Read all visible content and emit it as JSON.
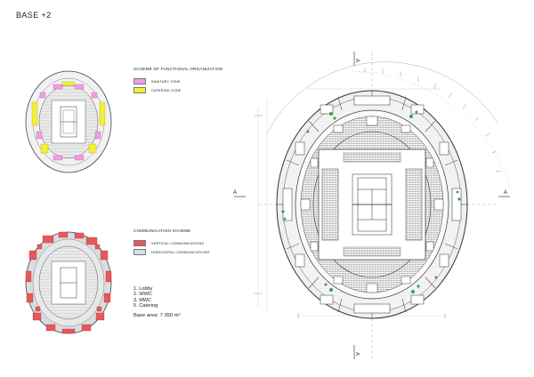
{
  "title": "BASE +2",
  "functional": {
    "heading": "SCHEME OF FUNCTIONAL ORGANIZATION",
    "legend": [
      {
        "label": "SANITARY ZONE",
        "color": "#f39de6"
      },
      {
        "label": "CATERING ZONE",
        "color": "#f3f03a"
      }
    ]
  },
  "communication": {
    "heading": "COMMUNICATION SCHEME",
    "legend": [
      {
        "label": "VERTICAL COMMUNICATIONS",
        "color": "#e8575a"
      },
      {
        "label": "HORIZONTAL COMMUNICATIONS",
        "color": "#d9dde0"
      }
    ]
  },
  "key": [
    "1. Lobby",
    "2. WWC",
    "3. MWC",
    "5. Catering"
  ],
  "base_area": "Base area: 7 350 m²",
  "section_mark": "A",
  "colors": {
    "line": "#333333",
    "light": "#dcdcdc",
    "tree": "#3aa04a"
  }
}
